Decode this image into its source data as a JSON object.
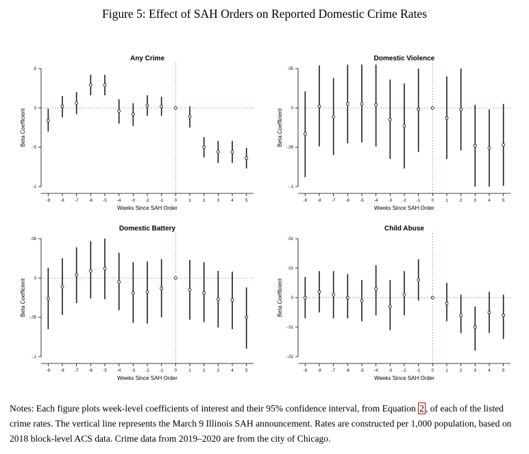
{
  "figure_title": "Figure 5: Effect of SAH Orders on Reported Domestic Crime Rates",
  "notes": {
    "before_ref": "Notes: Each figure plots week-level coefficients of interest and their 95% confidence interval, from Equation ",
    "ref": "2",
    "after_ref": ", of each of the listed crime rates. The vertical line represents the March 9 Illinois SAH announcement. Rates are constructed per 1,000 population, based on 2018 block-level ACS data. Crime data from 2019–2020 are from the city of Chicago."
  },
  "colors": {
    "ci": "#1a1a1a",
    "point": "#1a1a1a",
    "refline": "#d0707a"
  },
  "chart_data": [
    {
      "type": "scatter",
      "title": "Any Crime",
      "xlabel": "Weeks Since SAH Order",
      "ylabel": "Beta Coefficient",
      "x": [
        -9,
        -8,
        -7,
        -6,
        -5,
        -4,
        -3,
        -2,
        -1,
        0,
        1,
        2,
        3,
        4,
        5
      ],
      "y": [
        -0.16,
        0.02,
        0.06,
        0.29,
        0.29,
        -0.04,
        -0.08,
        0.03,
        0.02,
        0.0,
        -0.11,
        -0.5,
        -0.56,
        -0.56,
        -0.64
      ],
      "ci_low": [
        -0.3,
        -0.12,
        -0.08,
        0.16,
        0.16,
        -0.2,
        -0.23,
        -0.1,
        -0.1,
        0.0,
        -0.25,
        -0.63,
        -0.7,
        -0.7,
        -0.77
      ],
      "ci_high": [
        -0.01,
        0.15,
        0.2,
        0.42,
        0.42,
        0.11,
        0.06,
        0.16,
        0.14,
        0.0,
        0.02,
        -0.37,
        -0.42,
        -0.42,
        -0.51
      ],
      "ylim": [
        -1,
        0.5
      ],
      "yticks": [
        0.5,
        0,
        -0.5,
        -1
      ],
      "ytick_labels": [
        ".5",
        "0",
        "-.5",
        "-1"
      ],
      "xticks": [
        -9,
        -8,
        -7,
        -6,
        -5,
        -4,
        -3,
        -2,
        -1,
        0,
        1,
        2,
        3,
        4,
        5
      ],
      "grid": "horizontal dashed at 0",
      "refline_x": 0
    },
    {
      "type": "scatter",
      "title": "Domestic Violence",
      "xlabel": "Weeks Since SAH Order",
      "ylabel": "Beta Coefficient",
      "x": [
        -9,
        -8,
        -7,
        -6,
        -5,
        -4,
        -3,
        -2,
        -1,
        0,
        1,
        2,
        3,
        4,
        5
      ],
      "y": [
        -0.033,
        0.002,
        -0.011,
        0.005,
        0.005,
        0.004,
        -0.015,
        -0.023,
        -0.002,
        0.0,
        -0.013,
        -0.002,
        -0.048,
        -0.051,
        -0.047
      ],
      "ci_low": [
        -0.088,
        -0.049,
        -0.06,
        -0.045,
        -0.044,
        -0.049,
        -0.065,
        -0.077,
        -0.056,
        0.0,
        -0.065,
        -0.054,
        -0.1,
        -0.1,
        -0.099
      ],
      "ci_high": [
        0.021,
        0.054,
        0.038,
        0.055,
        0.055,
        0.055,
        0.036,
        0.031,
        0.05,
        0.0,
        0.04,
        0.05,
        0.004,
        -0.002,
        0.005
      ],
      "ylim": [
        -0.1,
        0.05
      ],
      "yticks": [
        0.05,
        0,
        -0.05,
        -0.1
      ],
      "ytick_labels": [
        ".05",
        "0",
        "-.05",
        "-.1"
      ],
      "xticks": [
        -9,
        -8,
        -7,
        -6,
        -5,
        -4,
        -3,
        -2,
        -1,
        0,
        1,
        2,
        3,
        4,
        5
      ],
      "grid": "horizontal dashed at 0",
      "refline_x": 0
    },
    {
      "type": "scatter",
      "title": "Domestic Battery",
      "xlabel": "Weeks Since SAH Order",
      "ylabel": "Beta Coefficient",
      "x": [
        -9,
        -8,
        -7,
        -6,
        -5,
        -4,
        -3,
        -2,
        -1,
        0,
        1,
        2,
        3,
        4,
        5
      ],
      "y": [
        -0.026,
        -0.011,
        0.004,
        0.009,
        0.012,
        -0.005,
        -0.019,
        -0.018,
        -0.013,
        0.0,
        -0.015,
        -0.019,
        -0.027,
        -0.028,
        -0.05
      ],
      "ci_low": [
        -0.065,
        -0.047,
        -0.032,
        -0.026,
        -0.027,
        -0.041,
        -0.057,
        -0.058,
        -0.05,
        0.0,
        -0.053,
        -0.056,
        -0.063,
        -0.065,
        -0.09
      ],
      "ci_high": [
        0.013,
        0.025,
        0.039,
        0.047,
        0.05,
        0.032,
        0.02,
        0.021,
        0.024,
        0.0,
        0.023,
        0.02,
        0.009,
        0.008,
        -0.012
      ],
      "ylim": [
        -0.1,
        0.05
      ],
      "yticks": [
        0.05,
        0,
        -0.05,
        -0.1
      ],
      "ytick_labels": [
        ".05",
        "0",
        "-.05",
        "-.1"
      ],
      "xticks": [
        -9,
        -8,
        -7,
        -6,
        -5,
        -4,
        -3,
        -2,
        -1,
        0,
        1,
        2,
        3,
        4,
        5
      ],
      "grid": "horizontal dashed at 0",
      "refline_x": 0
    },
    {
      "type": "scatter",
      "title": "Child Abuse",
      "xlabel": "Weeks Since SAH Order",
      "ylabel": "Beta Coefficient",
      "x": [
        -9,
        -8,
        -7,
        -6,
        -5,
        -4,
        -3,
        -2,
        -1,
        0,
        1,
        2,
        3,
        4,
        5
      ],
      "y": [
        0.0,
        0.002,
        0.001,
        0.0,
        -0.001,
        0.003,
        -0.003,
        0.001,
        0.006,
        0.0,
        -0.002,
        -0.006,
        -0.01,
        -0.005,
        -0.006
      ],
      "ci_low": [
        -0.007,
        -0.005,
        -0.007,
        -0.007,
        -0.008,
        -0.006,
        -0.011,
        -0.006,
        -0.001,
        0.0,
        -0.008,
        -0.012,
        -0.018,
        -0.012,
        -0.014
      ],
      "ci_high": [
        0.007,
        0.009,
        0.009,
        0.008,
        0.006,
        0.011,
        0.006,
        0.009,
        0.013,
        0.0,
        0.005,
        0.001,
        -0.003,
        0.002,
        0.001
      ],
      "ylim": [
        -0.02,
        0.02
      ],
      "yticks": [
        0.02,
        0.01,
        0,
        -0.01,
        -0.02
      ],
      "ytick_labels": [
        ".02",
        ".01",
        "0",
        "-.01",
        "-.02"
      ],
      "xticks": [
        -9,
        -8,
        -7,
        -6,
        -5,
        -4,
        -3,
        -2,
        -1,
        0,
        1,
        2,
        3,
        4,
        5
      ],
      "grid": "horizontal dashed at 0",
      "refline_x": 0
    }
  ]
}
